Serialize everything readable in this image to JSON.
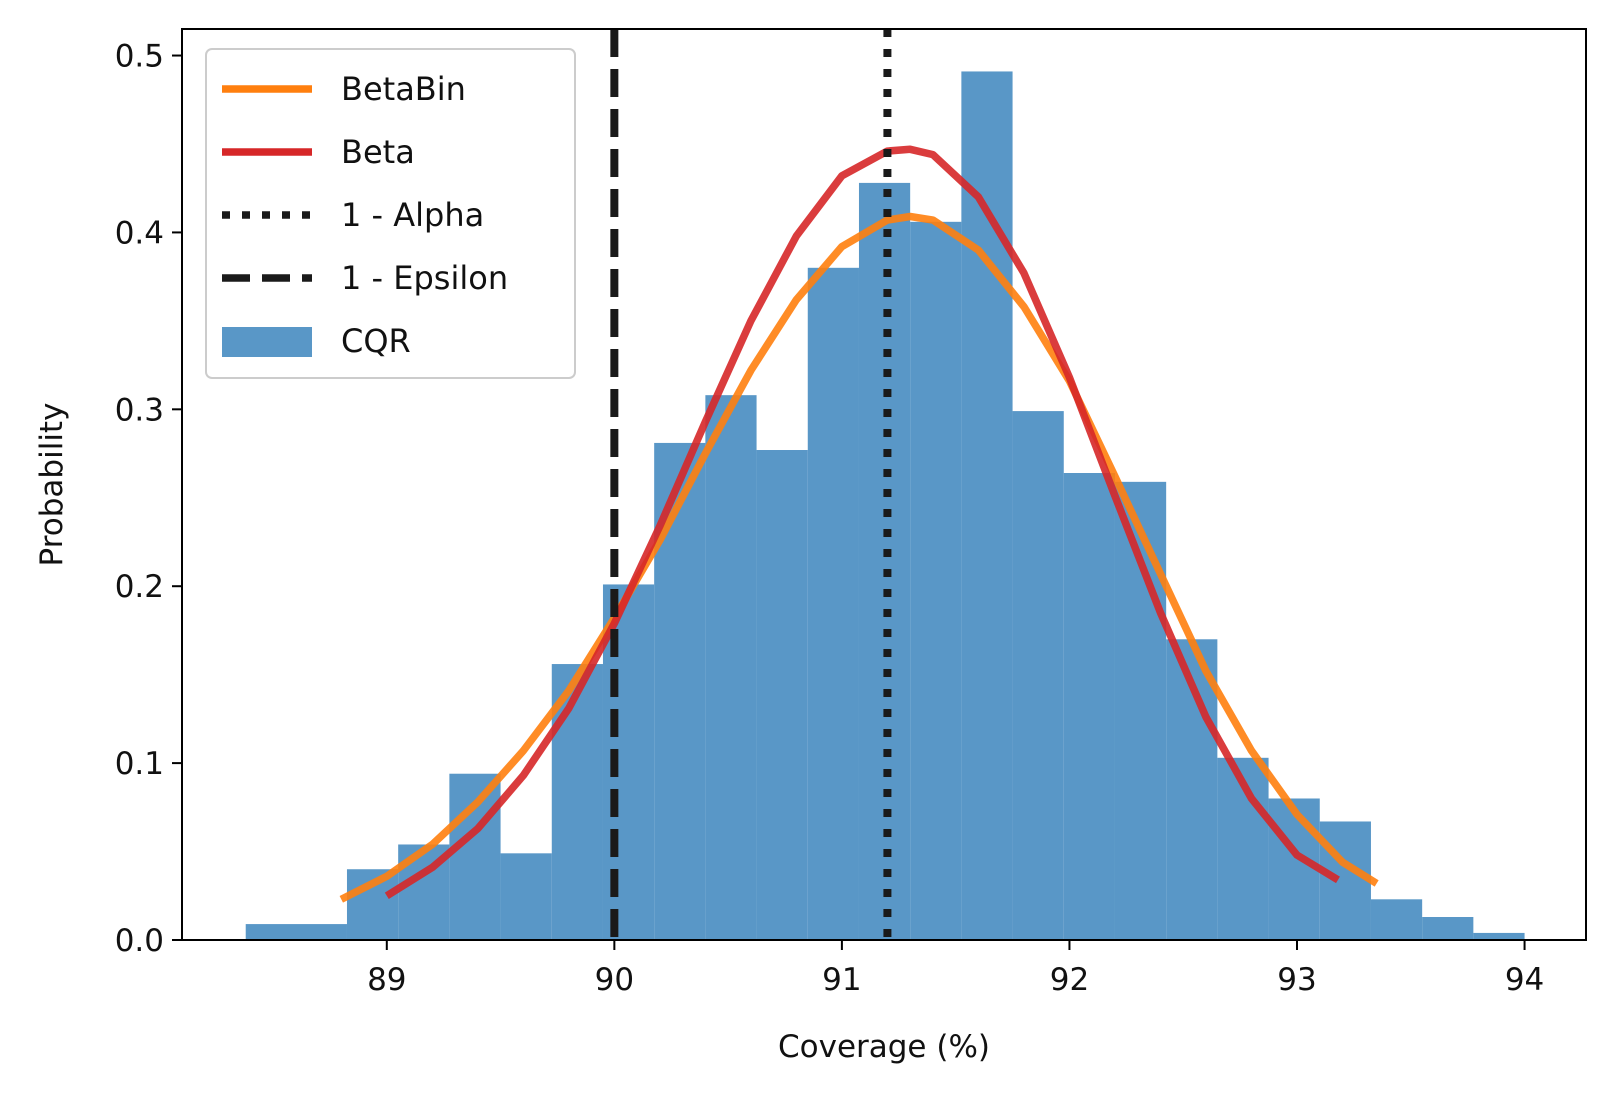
{
  "chart_data": {
    "type": "histogram",
    "title": "",
    "xlabel": "Coverage (%)",
    "ylabel": "Probability",
    "xlim": [
      88.1,
      94.27
    ],
    "ylim": [
      0,
      0.515
    ],
    "xticks": [
      {
        "value": 89,
        "label": "89"
      },
      {
        "value": 90,
        "label": "90"
      },
      {
        "value": 91,
        "label": "91"
      },
      {
        "value": 92,
        "label": "92"
      },
      {
        "value": 93,
        "label": "93"
      },
      {
        "value": 94,
        "label": "94"
      }
    ],
    "yticks": [
      {
        "value": 0.0,
        "label": "0.0"
      },
      {
        "value": 0.1,
        "label": "0.1"
      },
      {
        "value": 0.2,
        "label": "0.2"
      },
      {
        "value": 0.3,
        "label": "0.3"
      },
      {
        "value": 0.4,
        "label": "0.4"
      },
      {
        "value": 0.5,
        "label": "0.5"
      }
    ],
    "histogram": {
      "name": "CQR",
      "color": "#4b8ec2",
      "bin_edges": [
        88.38,
        88.825,
        89.05,
        89.275,
        89.5,
        89.725,
        89.95,
        90.175,
        90.4,
        90.625,
        90.85,
        91.075,
        91.3,
        91.525,
        91.75,
        91.975,
        92.2,
        92.425,
        92.65,
        92.875,
        93.1,
        93.325,
        93.55,
        93.775,
        94.0
      ],
      "values": [
        0.009,
        0.04,
        0.054,
        0.094,
        0.049,
        0.156,
        0.201,
        0.281,
        0.308,
        0.277,
        0.38,
        0.428,
        0.406,
        0.491,
        0.299,
        0.264,
        0.259,
        0.17,
        0.103,
        0.08,
        0.067,
        0.023,
        0.013,
        0.004
      ]
    },
    "series": [
      {
        "name": "BetaBin",
        "type": "line",
        "color": "#ff7f0e",
        "x": [
          88.8,
          89.0,
          89.2,
          89.4,
          89.6,
          89.8,
          90.0,
          90.2,
          90.4,
          90.6,
          90.8,
          91.0,
          91.2,
          91.3,
          91.4,
          91.6,
          91.8,
          92.0,
          92.2,
          92.4,
          92.6,
          92.8,
          93.0,
          93.2,
          93.35
        ],
        "y": [
          0.023,
          0.036,
          0.054,
          0.078,
          0.107,
          0.141,
          0.182,
          0.226,
          0.275,
          0.322,
          0.362,
          0.392,
          0.407,
          0.409,
          0.407,
          0.39,
          0.358,
          0.316,
          0.262,
          0.207,
          0.152,
          0.107,
          0.071,
          0.044,
          0.032
        ]
      },
      {
        "name": "Beta",
        "type": "line",
        "color": "#d62728",
        "x": [
          89.0,
          89.2,
          89.4,
          89.6,
          89.8,
          90.0,
          90.2,
          90.4,
          90.6,
          90.8,
          91.0,
          91.2,
          91.3,
          91.4,
          91.6,
          91.8,
          92.0,
          92.2,
          92.4,
          92.6,
          92.8,
          93.0,
          93.18
        ],
        "y": [
          0.025,
          0.041,
          0.063,
          0.093,
          0.131,
          0.179,
          0.234,
          0.293,
          0.35,
          0.398,
          0.432,
          0.446,
          0.447,
          0.444,
          0.42,
          0.377,
          0.318,
          0.251,
          0.185,
          0.126,
          0.08,
          0.048,
          0.034
        ]
      }
    ],
    "vlines": [
      {
        "name": "1 - Alpha",
        "x": 91.2,
        "style": "dotted",
        "color": "#1a1a1a"
      },
      {
        "name": "1 - Epsilon",
        "x": 90.0,
        "style": "dashed",
        "color": "#1a1a1a"
      }
    ],
    "legend": {
      "position": "top-left",
      "entries": [
        {
          "label": "BetaBin",
          "kind": "line",
          "color": "#ff7f0e",
          "style": "solid"
        },
        {
          "label": "Beta",
          "kind": "line",
          "color": "#d62728",
          "style": "solid"
        },
        {
          "label": "1 - Alpha",
          "kind": "line",
          "color": "#1a1a1a",
          "style": "dotted"
        },
        {
          "label": "1 - Epsilon",
          "kind": "line",
          "color": "#1a1a1a",
          "style": "dashed"
        },
        {
          "label": "CQR",
          "kind": "patch",
          "color": "#4b8ec2"
        }
      ]
    },
    "grid": false
  }
}
